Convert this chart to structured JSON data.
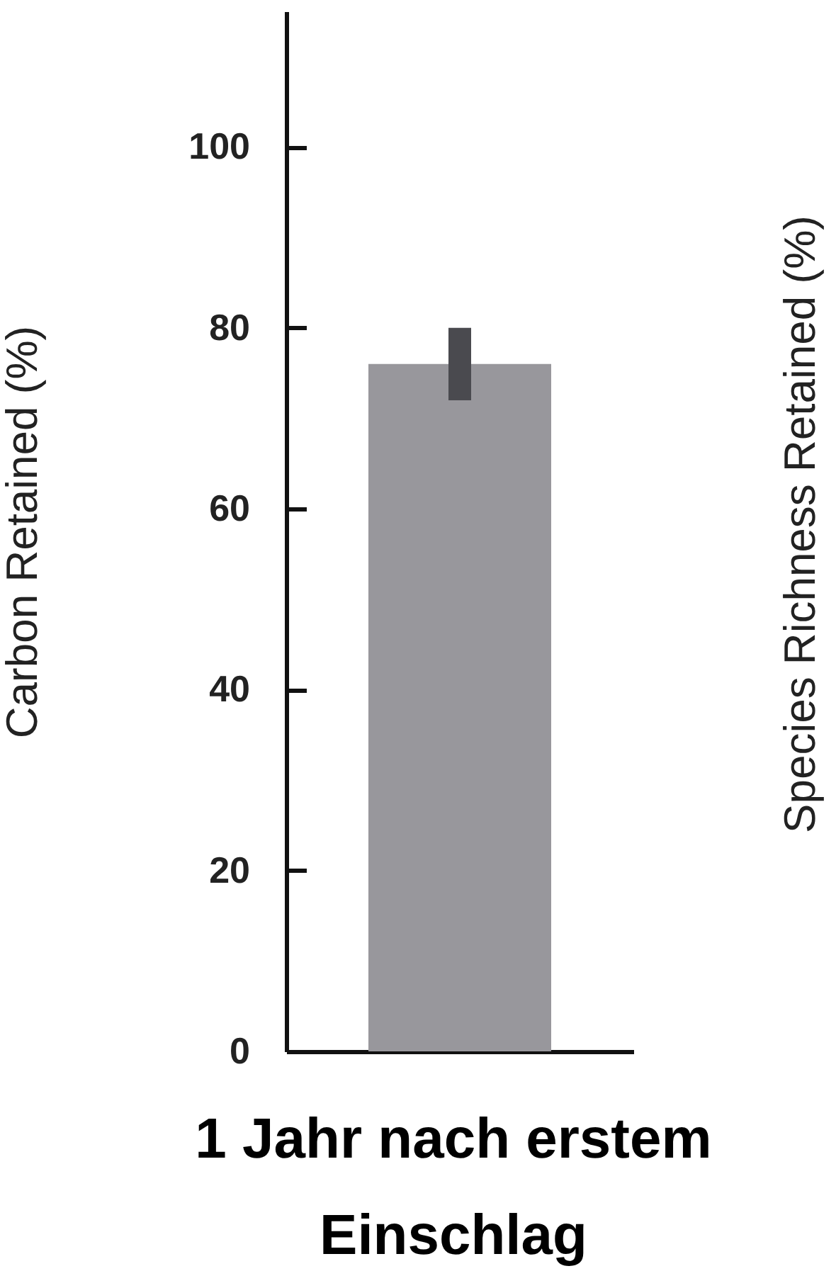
{
  "chart_data": {
    "type": "bar",
    "categories": [
      null
    ],
    "values": [
      76
    ],
    "errors": [
      [
        72,
        80
      ]
    ],
    "color": "#98979c",
    "xlabel": "1 Jahr nach erstem Einschlag",
    "ylabel": "Carbon Retained (%)",
    "y2label": "Species Richness Retained (%)",
    "ylim": [
      0,
      115
    ],
    "yticks": [
      0,
      20,
      40,
      60,
      80,
      100
    ],
    "grid": false
  }
}
